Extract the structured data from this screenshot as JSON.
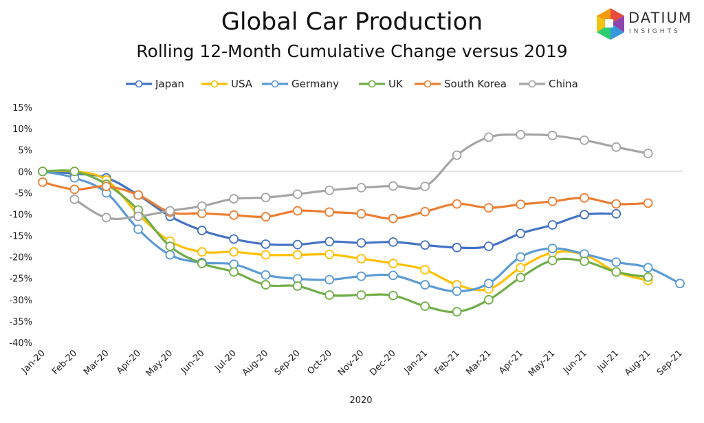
{
  "brand": {
    "name": "DATIUM",
    "tagline": "INSIGHTS"
  },
  "chart_data": {
    "type": "line",
    "title": "Global Car Production",
    "subtitle": "Rolling 12-Month Cumulative Change versus 2019",
    "xlabel": "2020",
    "ylabel": "",
    "ylim": [
      -40,
      15
    ],
    "yticks": [
      15,
      10,
      5,
      0,
      -5,
      -10,
      -15,
      -20,
      -25,
      -30,
      -35,
      -40
    ],
    "ytick_labels": [
      "15%",
      "10%",
      "5%",
      "0%",
      "-5%",
      "-10%",
      "-15%",
      "-20%",
      "-25%",
      "-30%",
      "-35%",
      "-40%"
    ],
    "grid": false,
    "legend": "top",
    "categories": [
      "Jan-20",
      "Feb-20",
      "Mar-20",
      "Apr-20",
      "May-20",
      "Jun-20",
      "Jul-20",
      "Aug-20",
      "Sep-20",
      "Oct-20",
      "Nov-20",
      "Dec-20",
      "Jan-21",
      "Feb-21",
      "Mar-21",
      "Apr-21",
      "May-21",
      "Jun-21",
      "Jul-21",
      "Aug-21",
      "Sep-21"
    ],
    "series": [
      {
        "name": "Japan",
        "color": "#4472c4",
        "values": [
          0,
          -0.5,
          -1.5,
          -5.5,
          -10.5,
          -13.8,
          -15.8,
          -17,
          -17.1,
          -16.4,
          -16.7,
          -16.5,
          -17.2,
          -17.8,
          -17.5,
          -14.5,
          -12.5,
          -10.1,
          -9.9,
          null,
          null
        ]
      },
      {
        "name": "USA",
        "color": "#ffc000",
        "values": [
          0,
          0,
          -2,
          -10,
          -16.3,
          -18.8,
          -18.8,
          -19.5,
          -19.5,
          -19.4,
          -20.4,
          -21.5,
          -23,
          -26.5,
          -27.5,
          -22.5,
          -19,
          -19.5,
          -23.5,
          -25.5,
          null
        ]
      },
      {
        "name": "Germany",
        "color": "#5b9bd5",
        "values": [
          0,
          -1.5,
          -5,
          -13.5,
          -19.5,
          -21.3,
          -21.7,
          -24.2,
          -25.1,
          -25.3,
          -24.5,
          -24.3,
          -26.5,
          -28,
          -26.2,
          -20,
          -18,
          -19.3,
          -21.2,
          -22.5,
          -26.2
        ]
      },
      {
        "name": "UK",
        "color": "#70ad47",
        "values": [
          0,
          0,
          -3,
          -9,
          -17.5,
          -21.5,
          -23.5,
          -26.5,
          -26.8,
          -28.9,
          -28.9,
          -29,
          -31.5,
          -32.8,
          -30,
          -24.8,
          -20.8,
          -21,
          -23.5,
          -24.7,
          null
        ]
      },
      {
        "name": "South Korea",
        "color": "#ed7d31",
        "values": [
          -2.5,
          -4.2,
          -3.5,
          -5.5,
          -9.5,
          -9.8,
          -10.2,
          -10.6,
          -9.2,
          -9.5,
          -9.9,
          -11,
          -9.4,
          -7.6,
          -8.5,
          -7.7,
          -7,
          -6.2,
          -7.6,
          -7.4,
          null
        ]
      },
      {
        "name": "China",
        "color": "#a5a5a5",
        "values": [
          null,
          -6.5,
          -10.8,
          -10.5,
          -9.2,
          -8.1,
          -6.4,
          -6.1,
          -5.3,
          -4.4,
          -3.8,
          -3.4,
          -3.5,
          3.8,
          8,
          8.6,
          8.4,
          7.3,
          5.7,
          4.2,
          null
        ]
      }
    ]
  }
}
